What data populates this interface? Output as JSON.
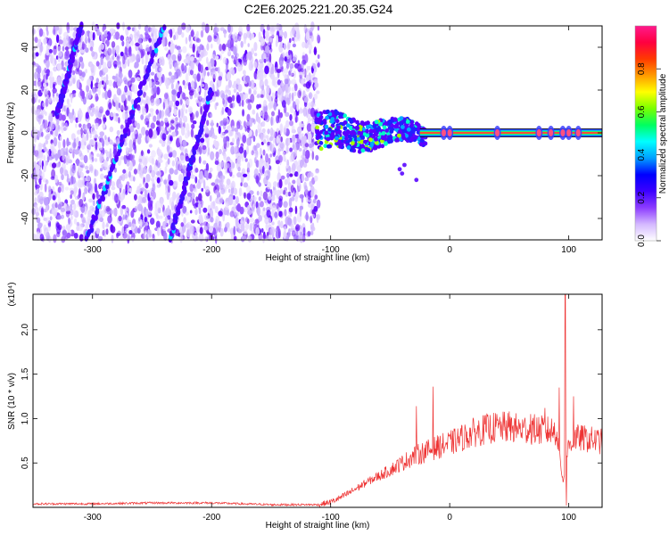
{
  "title": "C2E6.2025.221.20.35.G24",
  "chart_data": [
    {
      "type": "heatmap",
      "xlabel": "Height of straight line (km)",
      "ylabel": "Frequency (Hz)",
      "xlim": [
        -350,
        128
      ],
      "ylim": [
        -50,
        50
      ],
      "x_ticks": [
        -300,
        -200,
        -100,
        0,
        100
      ],
      "x_tick_labels": [
        "-300",
        "-200",
        "-100",
        "0",
        "100"
      ],
      "y_ticks": [
        -40,
        -20,
        0,
        20,
        40
      ],
      "y_tick_labels": [
        "-40",
        "-20",
        "0",
        "20",
        "40"
      ],
      "noise_region_x": [
        -350,
        -110
      ],
      "signal_line_frequency": 0,
      "signal_line_x": [
        -25,
        128
      ],
      "sweep_lines": [
        {
          "x": [
            -330,
            -310
          ],
          "y": [
            8,
            50
          ]
        },
        {
          "x": [
            -305,
            -240
          ],
          "y": [
            -50,
            50
          ]
        },
        {
          "x": [
            -235,
            -200
          ],
          "y": [
            -50,
            20
          ]
        }
      ],
      "colorbar": {
        "label": "Normalized spectral amplitude",
        "range": [
          0,
          1
        ],
        "ticks": [
          0.0,
          0.2,
          0.4,
          0.6,
          0.8
        ],
        "tick_labels": [
          "0.0",
          "0.2",
          "0.4",
          "0.6",
          "0.8"
        ],
        "colors": [
          "#ffffff",
          "#d4b8ff",
          "#8c3cff",
          "#3c00ff",
          "#0000ff",
          "#00a0ff",
          "#00ffff",
          "#00ff60",
          "#7aff00",
          "#ffff00",
          "#ff9a00",
          "#ff3a00",
          "#ff0040",
          "#ff1a8c"
        ]
      },
      "grid": false
    },
    {
      "type": "line",
      "xlabel": "Height of straight line (km)",
      "ylabel": "SNR (10 * v/v)",
      "y_multiplier": "(x10⁴)",
      "xlim": [
        -350,
        128
      ],
      "ylim": [
        0,
        2.4
      ],
      "x_ticks": [
        -300,
        -200,
        -100,
        0,
        100
      ],
      "x_tick_labels": [
        "-300",
        "-200",
        "-100",
        "0",
        "100"
      ],
      "y_ticks": [
        0.5,
        1.0,
        1.5,
        2.0
      ],
      "y_tick_labels": [
        "0.5",
        "1.0",
        "1.5",
        "2.0"
      ],
      "color": "#ee3333",
      "grid": false,
      "envelope": {
        "x": [
          -350,
          -300,
          -250,
          -200,
          -150,
          -110,
          -100,
          -90,
          -80,
          -70,
          -60,
          -50,
          -40,
          -30,
          -20,
          -10,
          0,
          10,
          20,
          30,
          40,
          50,
          60,
          70,
          80,
          90,
          95,
          100,
          105,
          110,
          120,
          128
        ],
        "y": [
          0.04,
          0.04,
          0.05,
          0.05,
          0.03,
          0.03,
          0.06,
          0.12,
          0.2,
          0.28,
          0.35,
          0.42,
          0.5,
          0.58,
          0.63,
          0.68,
          0.72,
          0.78,
          0.84,
          0.88,
          0.9,
          0.9,
          0.88,
          0.88,
          0.86,
          0.86,
          0.3,
          0.7,
          0.78,
          0.78,
          0.76,
          0.74
        ]
      },
      "peaks": [
        {
          "x": -28,
          "y": 1.14
        },
        {
          "x": -14,
          "y": 1.36
        },
        {
          "x": 50,
          "y": 1.08
        },
        {
          "x": 68,
          "y": 1.05
        },
        {
          "x": 80,
          "y": 1.12
        },
        {
          "x": 92,
          "y": 1.35
        },
        {
          "x": 97,
          "y": 2.4
        },
        {
          "x": 98,
          "y": 0.02
        },
        {
          "x": 104,
          "y": 1.25
        }
      ]
    }
  ]
}
